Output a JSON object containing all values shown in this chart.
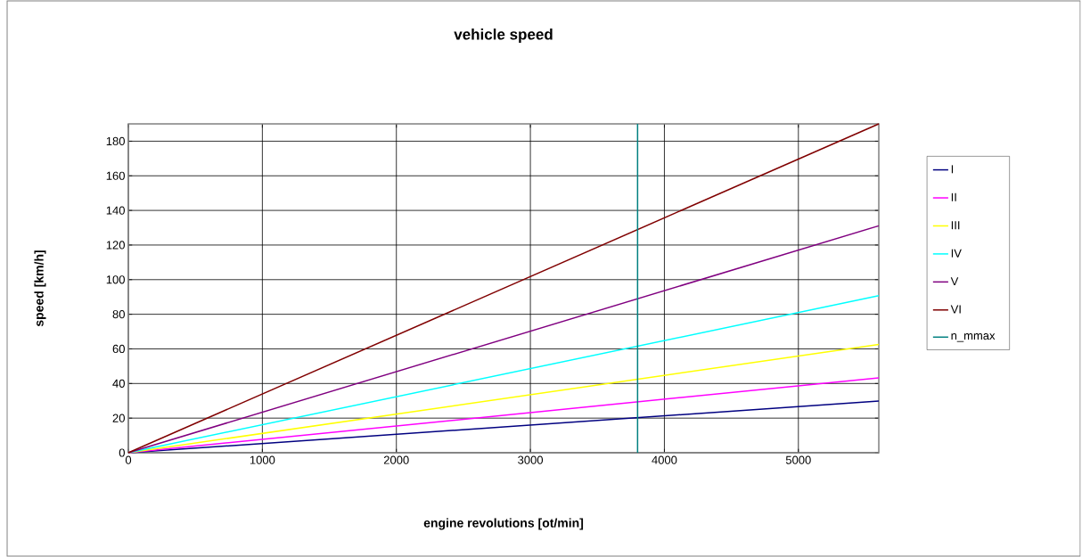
{
  "chart_data": {
    "type": "line",
    "title": "vehicle speed",
    "xlabel": "engine revolutions [ot/min]",
    "ylabel": "speed [km/h]",
    "x": [
      0,
      5600
    ],
    "series": [
      {
        "name": "I",
        "color": "#000080",
        "values": [
          0,
          29.9
        ]
      },
      {
        "name": "II",
        "color": "#ff00ff",
        "values": [
          0,
          43.3
        ]
      },
      {
        "name": "III",
        "color": "#ffff00",
        "values": [
          0,
          62.6
        ]
      },
      {
        "name": "IV",
        "color": "#00ffff",
        "values": [
          0,
          90.7
        ]
      },
      {
        "name": "V",
        "color": "#800080",
        "values": [
          0,
          131.1
        ]
      },
      {
        "name": "VI",
        "color": "#800000",
        "values": [
          0,
          190
        ]
      },
      {
        "name": "n_mmax",
        "color": "#008080",
        "x": [
          3800,
          3800
        ],
        "values": [
          0,
          190
        ]
      }
    ],
    "xlim": [
      0,
      5600
    ],
    "xticks": [
      0,
      1000,
      2000,
      3000,
      4000,
      5000
    ],
    "ylim": [
      0,
      190
    ],
    "yticks": [
      0,
      20,
      40,
      60,
      80,
      100,
      120,
      140,
      160,
      180
    ],
    "grid": true,
    "legend": "right",
    "marker": "none",
    "line_style": "solid"
  }
}
